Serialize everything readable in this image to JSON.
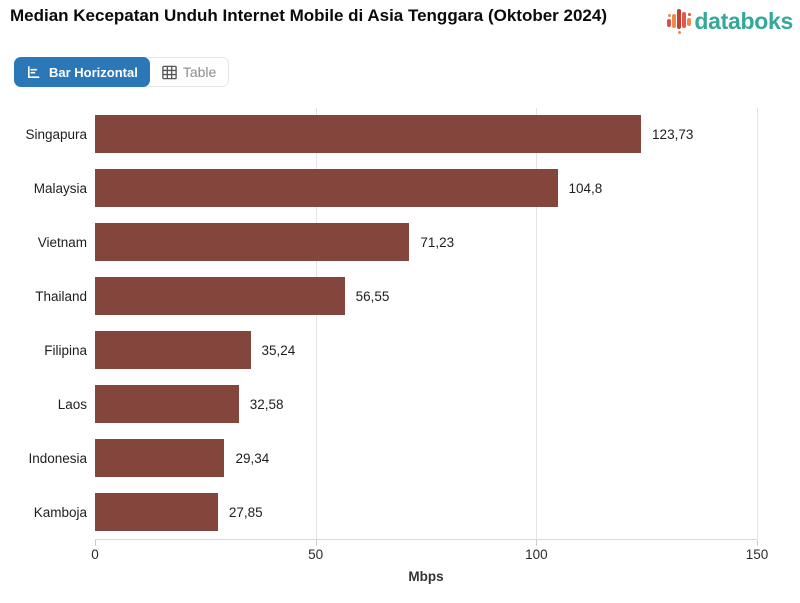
{
  "header": {
    "title": "Median Kecepatan Unduh Internet Mobile di Asia Tenggara (Oktober 2024)",
    "logo_text": "databoks"
  },
  "toolbar": {
    "bar_horizontal_label": "Bar Horizontal",
    "table_label": "Table"
  },
  "chart_data": {
    "type": "bar",
    "orientation": "horizontal",
    "title": "Median Kecepatan Unduh Internet Mobile di Asia Tenggara (Oktober 2024)",
    "categories": [
      "Singapura",
      "Malaysia",
      "Vietnam",
      "Thailand",
      "Filipina",
      "Laos",
      "Indonesia",
      "Kamboja"
    ],
    "values": [
      123.73,
      104.8,
      71.23,
      56.55,
      35.24,
      32.58,
      29.34,
      27.85
    ],
    "value_labels": [
      "123,73",
      "104,8",
      "71,23",
      "56,55",
      "35,24",
      "32,58",
      "29,34",
      "27,85"
    ],
    "xlabel": "Mbps",
    "ylabel": "",
    "xlim": [
      0,
      150
    ],
    "x_ticks": [
      0,
      50,
      100,
      150
    ],
    "x_tick_labels": [
      "0",
      "50",
      "100",
      "150"
    ],
    "grid": true,
    "legend": "none",
    "bar_color": "#83453C"
  },
  "colors": {
    "bar": "#83453C",
    "active_button": "#2B78B9",
    "logo_text": "#35A79B",
    "gridline": "#E3E3E3",
    "logo_bars": [
      "#D9534A",
      "#EE8A4E",
      "#C63D32",
      "#E2574C",
      "#EE8A4E"
    ]
  }
}
